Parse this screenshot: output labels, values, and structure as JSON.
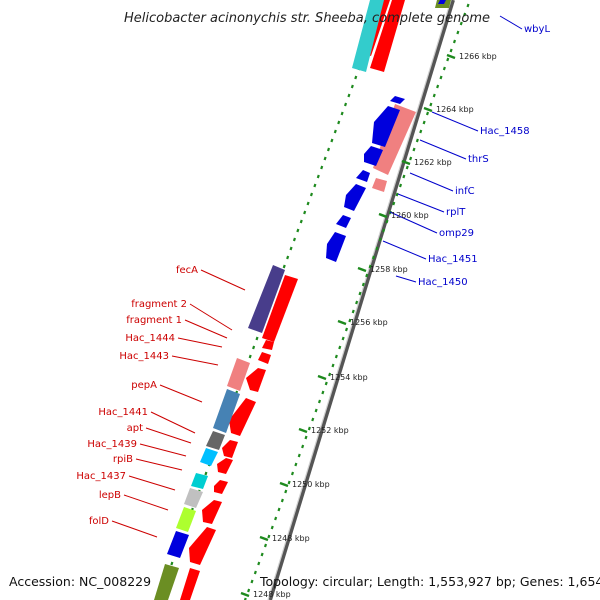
{
  "title": "Helicobacter acinonychis str. Sheeba, complete genome",
  "footer": {
    "accession": "Accession: NC_008229",
    "summary": "Topology: circular; Length: 1,553,927 bp; Genes: 1,654"
  },
  "colors": {
    "forward": "#ff0000",
    "reverse": "#0000dd",
    "backbone": "#888888",
    "ticks": "#1e8a1e",
    "left_labels": "#cc0000",
    "right_labels": "#0000cc"
  },
  "ticks": [
    {
      "kbp": 1248,
      "label": "1248 kbp"
    },
    {
      "kbp": 1250,
      "label": "1250 kbp"
    },
    {
      "kbp": 1252,
      "label": "1252 kbp"
    },
    {
      "kbp": 1254,
      "label": "1254 kbp"
    },
    {
      "kbp": 1256,
      "label": "1256 kbp"
    },
    {
      "kbp": 1258,
      "label": "1258 kbp"
    },
    {
      "kbp": 1260,
      "label": "1260 kbp"
    },
    {
      "kbp": 1262,
      "label": "1262 kbp"
    },
    {
      "kbp": 1264,
      "label": "1264 kbp"
    },
    {
      "kbp": 1266,
      "label": "1266 kbp"
    },
    {
      "kbp": 1248,
      "label": "1248 kbp"
    }
  ],
  "genes_left": [
    {
      "name": "fecA"
    },
    {
      "name": "fragment 2"
    },
    {
      "name": "fragment 1"
    },
    {
      "name": "Hac_1444"
    },
    {
      "name": "Hac_1443"
    },
    {
      "name": "pepA"
    },
    {
      "name": "Hac_1441"
    },
    {
      "name": "apt"
    },
    {
      "name": "Hac_1439"
    },
    {
      "name": "rpiB"
    },
    {
      "name": "Hac_1437"
    },
    {
      "name": "lepB"
    },
    {
      "name": "folD"
    }
  ],
  "genes_right": [
    {
      "name": "wbyL"
    },
    {
      "name": "Hac_1458"
    },
    {
      "name": "thrS"
    },
    {
      "name": "infC"
    },
    {
      "name": "rplT"
    },
    {
      "name": "omp29"
    },
    {
      "name": "Hac_1451"
    },
    {
      "name": "Hac_1450"
    }
  ]
}
